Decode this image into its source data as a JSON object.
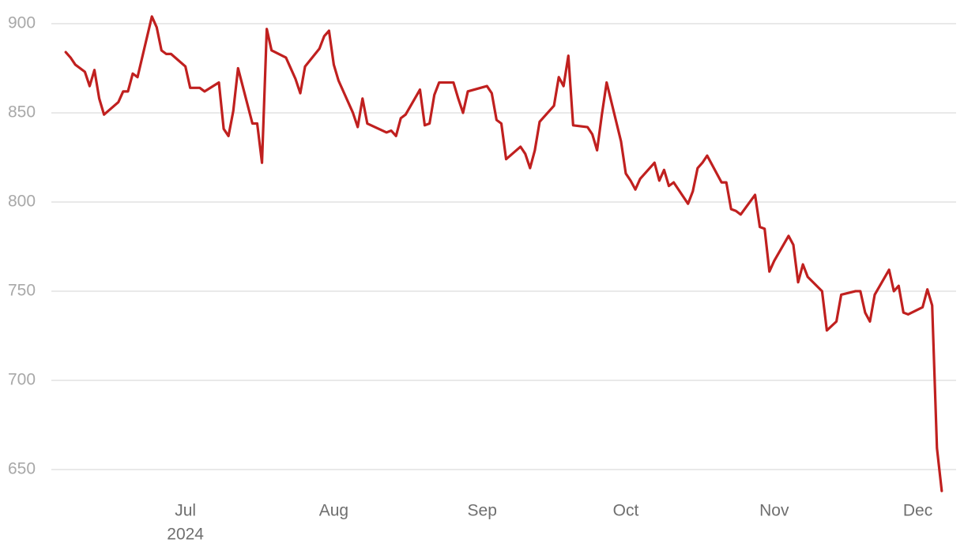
{
  "chart_data": {
    "type": "line",
    "x": [
      "2024-06-06",
      "2024-06-07",
      "2024-06-08",
      "2024-06-10",
      "2024-06-11",
      "2024-06-12",
      "2024-06-13",
      "2024-06-14",
      "2024-06-17",
      "2024-06-18",
      "2024-06-19",
      "2024-06-20",
      "2024-06-21",
      "2024-06-24",
      "2024-06-25",
      "2024-06-26",
      "2024-06-27",
      "2024-06-28",
      "2024-07-01",
      "2024-07-02",
      "2024-07-03",
      "2024-07-04",
      "2024-07-05",
      "2024-07-08",
      "2024-07-09",
      "2024-07-10",
      "2024-07-11",
      "2024-07-12",
      "2024-07-15",
      "2024-07-16",
      "2024-07-17",
      "2024-07-18",
      "2024-07-19",
      "2024-07-22",
      "2024-07-23",
      "2024-07-24",
      "2024-07-25",
      "2024-07-26",
      "2024-07-29",
      "2024-07-30",
      "2024-07-31",
      "2024-08-01",
      "2024-08-02",
      "2024-08-05",
      "2024-08-06",
      "2024-08-07",
      "2024-08-08",
      "2024-08-12",
      "2024-08-13",
      "2024-08-14",
      "2024-08-15",
      "2024-08-16",
      "2024-08-19",
      "2024-08-20",
      "2024-08-21",
      "2024-08-22",
      "2024-08-23",
      "2024-08-26",
      "2024-08-27",
      "2024-08-28",
      "2024-08-29",
      "2024-09-02",
      "2024-09-03",
      "2024-09-04",
      "2024-09-05",
      "2024-09-06",
      "2024-09-09",
      "2024-09-10",
      "2024-09-11",
      "2024-09-12",
      "2024-09-13",
      "2024-09-16",
      "2024-09-17",
      "2024-09-18",
      "2024-09-19",
      "2024-09-20",
      "2024-09-23",
      "2024-09-24",
      "2024-09-25",
      "2024-09-26",
      "2024-09-27",
      "2024-09-30",
      "2024-10-01",
      "2024-10-02",
      "2024-10-03",
      "2024-10-04",
      "2024-10-07",
      "2024-10-08",
      "2024-10-09",
      "2024-10-10",
      "2024-10-11",
      "2024-10-14",
      "2024-10-15",
      "2024-10-16",
      "2024-10-17",
      "2024-10-18",
      "2024-10-21",
      "2024-10-22",
      "2024-10-23",
      "2024-10-24",
      "2024-10-25",
      "2024-10-28",
      "2024-10-29",
      "2024-10-30",
      "2024-10-31",
      "2024-11-01",
      "2024-11-04",
      "2024-11-05",
      "2024-11-06",
      "2024-11-07",
      "2024-11-08",
      "2024-11-11",
      "2024-11-12",
      "2024-11-14",
      "2024-11-15",
      "2024-11-18",
      "2024-11-19",
      "2024-11-20",
      "2024-11-21",
      "2024-11-22",
      "2024-11-25",
      "2024-11-26",
      "2024-11-27",
      "2024-11-28",
      "2024-11-29",
      "2024-12-02",
      "2024-12-03",
      "2024-12-04",
      "2024-12-05",
      "2024-12-06"
    ],
    "series": [
      {
        "color": "#c0201f",
        "values": [
          884,
          881,
          877,
          873,
          865,
          874,
          858,
          849,
          856,
          862,
          862,
          872,
          870,
          904,
          898,
          885,
          883,
          883,
          876,
          864,
          864,
          864,
          862,
          867,
          841,
          837,
          851,
          875,
          844,
          844,
          822,
          897,
          885,
          881,
          875,
          869,
          861,
          876,
          886,
          893,
          896,
          877,
          868,
          850,
          842,
          858,
          844,
          839,
          840,
          837,
          847,
          849,
          863,
          843,
          844,
          860,
          867,
          867,
          858,
          850,
          862,
          865,
          861,
          846,
          844,
          824,
          831,
          827,
          819,
          829,
          845,
          854,
          870,
          865,
          882,
          843,
          842,
          838,
          829,
          849,
          867,
          834,
          816,
          812,
          807,
          813,
          822,
          812,
          818,
          809,
          811,
          799,
          806,
          819,
          822,
          826,
          811,
          811,
          796,
          795,
          793,
          804,
          786,
          785,
          761,
          767,
          781,
          776,
          755,
          765,
          758,
          750,
          728,
          733,
          748,
          750,
          750,
          738,
          733,
          748,
          762,
          750,
          753,
          738,
          737,
          741,
          751,
          742,
          662,
          638
        ]
      }
    ],
    "xlim": [
      "2024-06-03",
      "2024-12-09"
    ],
    "xticks": [
      {
        "value": "2024-07-01",
        "label": "Jul",
        "year": "2024"
      },
      {
        "value": "2024-08-01",
        "label": "Aug"
      },
      {
        "value": "2024-09-01",
        "label": "Sep"
      },
      {
        "value": "2024-10-01",
        "label": "Oct"
      },
      {
        "value": "2024-11-01",
        "label": "Nov"
      },
      {
        "value": "2024-12-01",
        "label": "Dec"
      }
    ],
    "ylim": [
      636,
      906
    ],
    "yticks": [
      650,
      700,
      750,
      800,
      850,
      900
    ],
    "grid": true
  }
}
